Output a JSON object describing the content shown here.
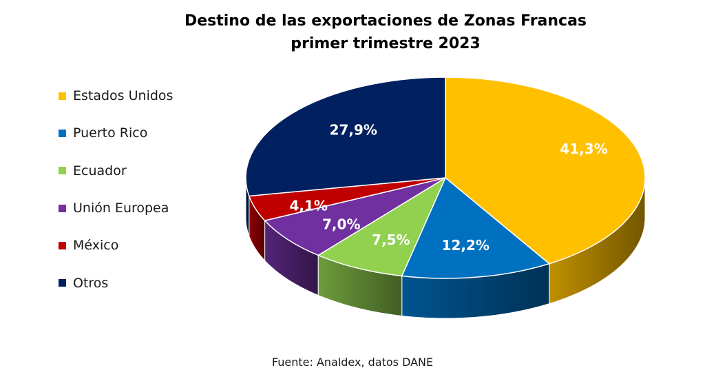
{
  "chart_data": {
    "type": "pie",
    "style": "3d",
    "title": [
      "Destino de las exportaciones de Zonas Francas",
      "primer trimestre 2023"
    ],
    "categories": [
      "Estados Unidos",
      "Puerto Rico",
      "Ecuador",
      "Unión Europea",
      "México",
      "Otros"
    ],
    "values": [
      41.3,
      12.2,
      7.5,
      7.0,
      4.1,
      27.9
    ],
    "labels": [
      "41,3%",
      "12,2%",
      "7,5%",
      "7,0%",
      "4,1%",
      "27,9%"
    ],
    "colors": [
      "#FFC000",
      "#0070C0",
      "#92D050",
      "#7030A0",
      "#C00000",
      "#002060"
    ],
    "legend_position": "left",
    "source": "Fuente: Analdex, datos DANE"
  }
}
